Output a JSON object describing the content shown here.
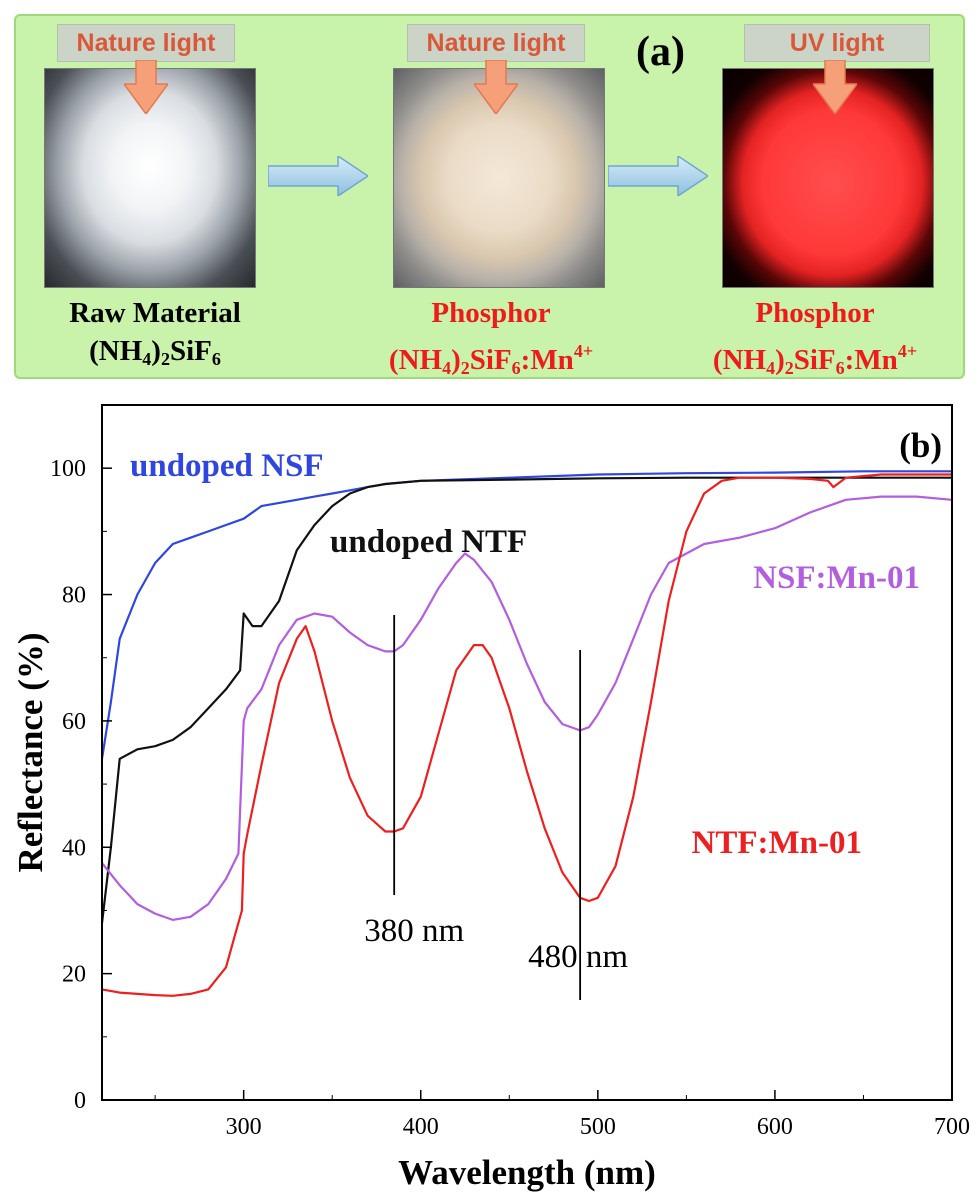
{
  "panel_a": {
    "label": "(a)",
    "steps": [
      {
        "light": "Nature light",
        "caption_line1": "Raw Material",
        "formula_base": "(NH",
        "formula_sub1": "4",
        "formula_mid": ")",
        "formula_sub2": "2",
        "formula_tail": "SiF",
        "formula_sub3": "6",
        "formula_dopant": "",
        "formula_sup": ""
      },
      {
        "light": "Nature light",
        "caption_line1": "Phosphor",
        "formula_base": "(NH",
        "formula_sub1": "4",
        "formula_mid": ")",
        "formula_sub2": "2",
        "formula_tail": "SiF",
        "formula_sub3": "6",
        "formula_dopant": ":Mn",
        "formula_sup": "4+"
      },
      {
        "light": "UV light",
        "caption_line1": "Phosphor",
        "formula_base": "(NH",
        "formula_sub1": "4",
        "formula_mid": ")",
        "formula_sub2": "2",
        "formula_tail": "SiF",
        "formula_sub3": "6",
        "formula_dopant": ":Mn",
        "formula_sup": "4+"
      }
    ],
    "colors": {
      "background": "#c9f3aa",
      "light_text": "#d9583a",
      "phosphor_text": "#ef1a1a",
      "arrow_fill": "#f6a07a",
      "flow_arrow": "#a7cce6"
    }
  },
  "chart_data": {
    "type": "line",
    "panel_label": "(b)",
    "xlabel": "Wavelength (nm)",
    "ylabel": "Reflectance (%)",
    "xlim": [
      220,
      700
    ],
    "ylim": [
      0,
      110
    ],
    "xticks": [
      300,
      400,
      500,
      600,
      700
    ],
    "yticks": [
      0,
      20,
      40,
      60,
      80,
      100
    ],
    "series": [
      {
        "name": "undoped NSF",
        "color": "#2f46e0",
        "x": [
          220,
          225,
          230,
          240,
          250,
          260,
          270,
          280,
          290,
          300,
          310,
          320,
          330,
          340,
          350,
          360,
          370,
          380,
          400,
          450,
          500,
          550,
          600,
          650,
          700
        ],
        "y": [
          54,
          63,
          73,
          80,
          85,
          88,
          89,
          90,
          91,
          92,
          94,
          94.5,
          95,
          95.5,
          96,
          96.5,
          97,
          97.5,
          98,
          98.5,
          99,
          99.2,
          99.3,
          99.5,
          99.5
        ]
      },
      {
        "name": "undoped NTF",
        "color": "#111111",
        "x": [
          220,
          225,
          230,
          240,
          250,
          260,
          270,
          280,
          290,
          298,
          300,
          305,
          310,
          320,
          330,
          340,
          350,
          360,
          370,
          380,
          400,
          450,
          500,
          550,
          600,
          650,
          700
        ],
        "y": [
          28,
          40,
          54,
          55.5,
          56,
          57,
          59,
          62,
          65,
          68,
          77,
          75,
          75,
          79,
          87,
          91,
          94,
          96,
          97,
          97.5,
          98,
          98.2,
          98.4,
          98.5,
          98.5,
          98.5,
          98.5
        ]
      },
      {
        "name": "NSF:Mn-01",
        "color": "#b35ee0",
        "x": [
          220,
          230,
          240,
          250,
          260,
          270,
          280,
          290,
          297,
          300,
          302,
          310,
          320,
          330,
          340,
          350,
          360,
          370,
          380,
          385,
          390,
          400,
          410,
          420,
          425,
          430,
          440,
          450,
          460,
          470,
          480,
          490,
          495,
          500,
          510,
          520,
          530,
          540,
          550,
          560,
          580,
          600,
          620,
          640,
          660,
          680,
          700
        ],
        "y": [
          37.5,
          34,
          31,
          29.5,
          28.5,
          29,
          31,
          35,
          39,
          60,
          62,
          65,
          72,
          76,
          77,
          76.5,
          74,
          72,
          71,
          71,
          72,
          76,
          81,
          85,
          86.5,
          85.5,
          82,
          76,
          69,
          63,
          59.5,
          58.5,
          59,
          61,
          66,
          73,
          80,
          85,
          86.5,
          88,
          89,
          90.5,
          93,
          95,
          95.5,
          95.5,
          95
        ]
      },
      {
        "name": "NTF:Mn-01",
        "color": "#ee1f1f",
        "x": [
          220,
          230,
          240,
          250,
          260,
          270,
          280,
          290,
          295,
          299,
          300,
          302,
          310,
          320,
          330,
          335,
          340,
          350,
          360,
          370,
          380,
          385,
          390,
          400,
          410,
          420,
          430,
          435,
          440,
          450,
          460,
          470,
          480,
          490,
          495,
          500,
          510,
          520,
          530,
          540,
          550,
          560,
          570,
          580,
          600,
          620,
          630,
          633,
          640,
          660,
          680,
          700
        ],
        "y": [
          17.5,
          17,
          16.8,
          16.6,
          16.5,
          16.8,
          17.5,
          21,
          26,
          30,
          39,
          42,
          53,
          66,
          73,
          75,
          71,
          60,
          51,
          45,
          42.5,
          42.5,
          43,
          48,
          58,
          68,
          72,
          72,
          70,
          62,
          52,
          43,
          36,
          32,
          31.5,
          32,
          37,
          48,
          63,
          79,
          90,
          96,
          98,
          98.5,
          98.5,
          98.3,
          98,
          97,
          98.5,
          99,
          99,
          99
        ]
      }
    ],
    "annotations": [
      {
        "text": "380 nm",
        "x": 385
      },
      {
        "text": "480 nm",
        "x": 490
      }
    ]
  }
}
